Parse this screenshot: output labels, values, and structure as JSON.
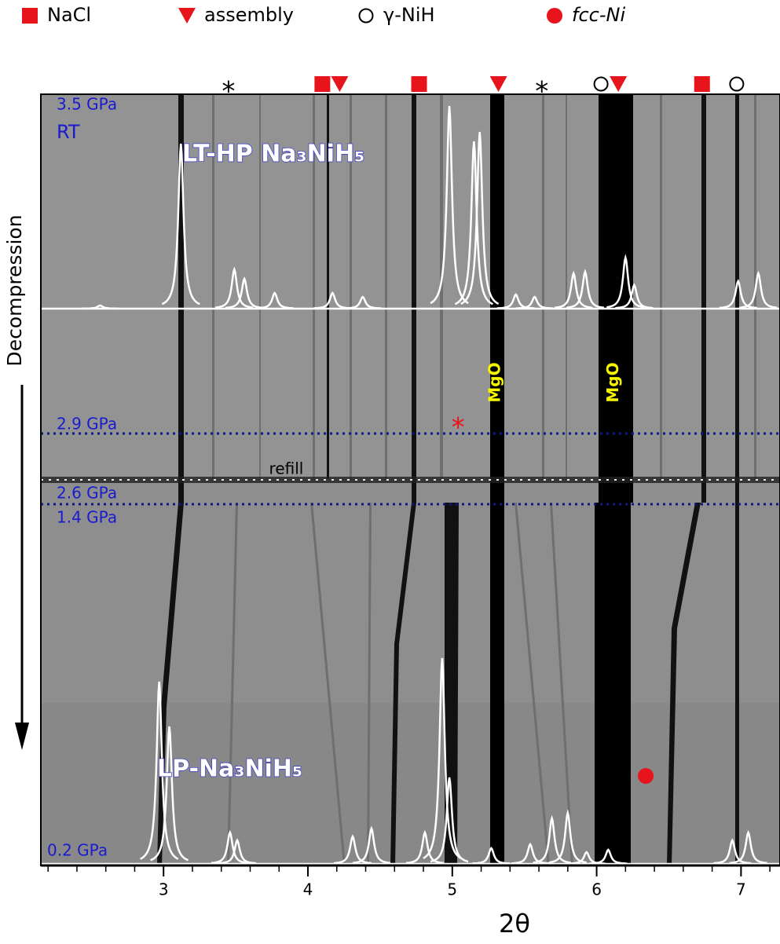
{
  "chart_data": {
    "type": "xrd-image",
    "x_label": "2θ",
    "xlim": [
      2.15,
      7.27
    ],
    "xticks": [
      3,
      4,
      5,
      6,
      7
    ],
    "y_label": "Decompression",
    "series": [
      {
        "name": "NaCl",
        "marker": "square",
        "color": "#e8141b",
        "values": [
          4.1,
          4.77,
          6.73
        ]
      },
      {
        "name": "assembly",
        "marker": "triangle",
        "color": "#e8141b",
        "values": [
          4.22,
          5.32,
          6.15
        ]
      },
      {
        "name": "γ-NiH",
        "marker": "circle",
        "color": "#000000",
        "values": [
          6.03,
          6.97
        ]
      },
      {
        "name": "fcc-Ni",
        "marker": "dot",
        "color": "#e8141b",
        "values": [
          6.34
        ]
      }
    ],
    "annotations": [
      {
        "text": "*",
        "x": 3.45,
        "color": "#000000"
      },
      {
        "text": "*",
        "x": 5.62,
        "color": "#000000"
      },
      {
        "text": "*",
        "x": 5.04,
        "color": "#e8141b"
      },
      {
        "text": "MgO",
        "x": 5.3,
        "color": "#f5f500"
      },
      {
        "text": "MgO",
        "x": 6.12,
        "color": "#f5f500"
      },
      {
        "text": "refill",
        "x": 3.85,
        "color": "#000000"
      }
    ],
    "pressure_labels": [
      "3.5 GPa",
      "RT",
      "2.9 GPa",
      "2.6 GPa",
      "1.4 GPa",
      "0.2 GPa"
    ],
    "patterns": [
      {
        "name": "LT-HP Na₃NiH₅",
        "x": [
          2.56,
          3.12,
          3.49,
          3.56,
          3.77,
          4.17,
          4.38,
          4.98,
          5.15,
          5.19,
          5.44,
          5.57,
          5.84,
          5.92,
          6.2,
          6.26,
          6.98,
          7.12
        ],
        "values": [
          4,
          210,
          50,
          38,
          20,
          20,
          15,
          258,
          213,
          225,
          18,
          15,
          45,
          47,
          65,
          30,
          35,
          45
        ]
      },
      {
        "name": "LP-Na₃NiH₅",
        "x": [
          2.97,
          3.04,
          3.46,
          3.51,
          4.31,
          4.44,
          4.81,
          4.93,
          4.98,
          5.27,
          5.54,
          5.69,
          5.8,
          5.93,
          6.08,
          6.94,
          7.05
        ],
        "values": [
          232,
          175,
          40,
          30,
          35,
          45,
          40,
          262,
          110,
          20,
          25,
          58,
          65,
          15,
          18,
          30,
          40
        ]
      }
    ]
  }
}
